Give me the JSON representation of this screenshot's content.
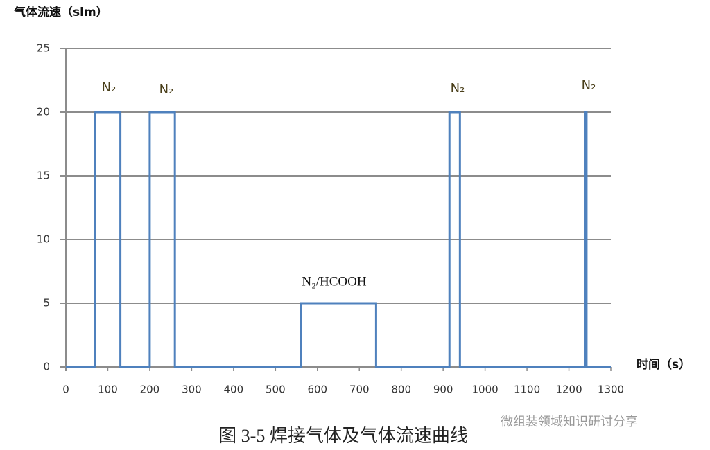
{
  "chart_data": {
    "type": "line",
    "y_label": "气体流速（slm）",
    "x_label": "时间（s）",
    "x": [
      0,
      70,
      70,
      130,
      130,
      200,
      200,
      260,
      260,
      560,
      560,
      740,
      740,
      915,
      915,
      940,
      940,
      1238,
      1238,
      1242,
      1242,
      1300
    ],
    "series": [
      {
        "color": "#4f81bd",
        "values": [
          0,
          0,
          20,
          20,
          0,
          0,
          20,
          20,
          0,
          0,
          5,
          5,
          0,
          0,
          20,
          20,
          0,
          0,
          20,
          20,
          0,
          0
        ]
      }
    ],
    "xlim": [
      0,
      1300
    ],
    "xticks": [
      0,
      100,
      200,
      300,
      400,
      500,
      600,
      700,
      800,
      900,
      1000,
      1100,
      1200,
      1300
    ],
    "ylim": [
      0,
      25
    ],
    "yticks": [
      0,
      5,
      10,
      15,
      20,
      25
    ],
    "grid": true,
    "annotations": [
      "N₂",
      "N₂",
      "N₂",
      "N₂",
      "N₂/HCOOH"
    ]
  },
  "figure": {
    "caption": "图 3-5 焊接气体及气体流速曲线",
    "watermark": "微组装领域知识研讨分享"
  }
}
